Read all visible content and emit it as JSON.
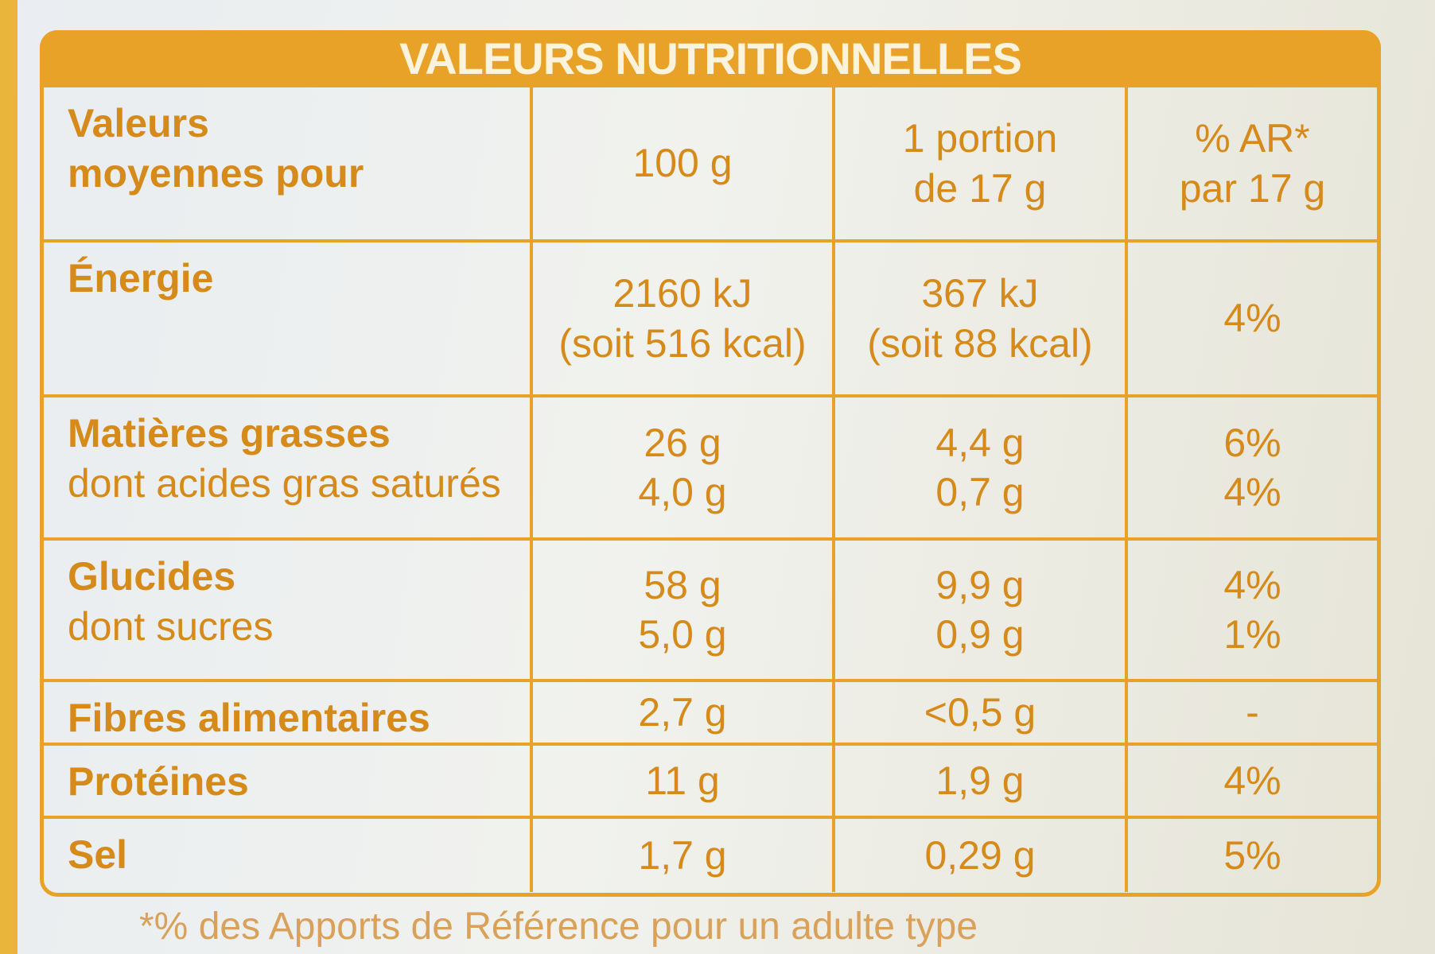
{
  "header": {
    "title": "VALEURS NUTRITIONNELLES"
  },
  "table": {
    "columns": [
      [
        "Valeurs",
        "moyennes pour"
      ],
      [
        "100 g"
      ],
      [
        "1 portion",
        "de 17 g"
      ],
      [
        "% AR*",
        "par 17 g"
      ]
    ],
    "rows": [
      [
        [
          "Énergie"
        ],
        [
          "2160 kJ",
          "(soit 516 kcal)"
        ],
        [
          "367 kJ",
          "(soit 88 kcal)"
        ],
        [
          "4%"
        ]
      ],
      [
        [
          "Matières grasses",
          "dont acides gras saturés"
        ],
        [
          "26 g",
          "4,0 g"
        ],
        [
          "4,4 g",
          "0,7 g"
        ],
        [
          "6%",
          "4%"
        ]
      ],
      [
        [
          "Glucides",
          "dont sucres"
        ],
        [
          "58 g",
          "5,0 g"
        ],
        [
          "9,9 g",
          "0,9 g"
        ],
        [
          "4%",
          "1%"
        ]
      ],
      [
        [
          "Fibres alimentaires"
        ],
        [
          "2,7 g"
        ],
        [
          "<0,5 g"
        ],
        [
          "-"
        ]
      ],
      [
        [
          "Protéines"
        ],
        [
          "11 g"
        ],
        [
          "1,9 g"
        ],
        [
          "4%"
        ]
      ],
      [
        [
          "Sel"
        ],
        [
          "1,7 g"
        ],
        [
          "0,29 g"
        ],
        [
          "5%"
        ]
      ]
    ]
  },
  "footnote": "*% des Apports de Référence pour un adulte type"
}
